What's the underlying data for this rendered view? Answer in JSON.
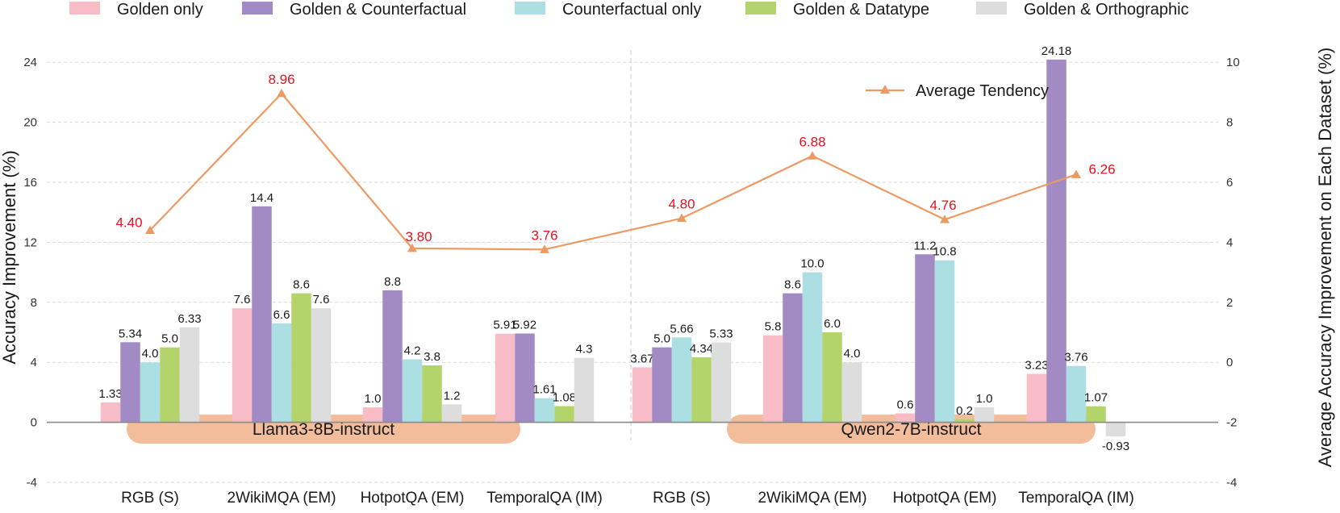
{
  "chart_data": {
    "type": "bar",
    "categories": [
      "RGB (S)",
      "2WikiMQA (EM)",
      "HotpotQA (EM)",
      "TemporalQA (IM)",
      "RGB (S)",
      "2WikiMQA (EM)",
      "HotpotQA (EM)",
      "TemporalQA (IM)"
    ],
    "groups": [
      {
        "label": "Llama3-8B-instruct",
        "category_indices": [
          0,
          1,
          2,
          3
        ]
      },
      {
        "label": "Qwen2-7B-instruct",
        "category_indices": [
          4,
          5,
          6,
          7
        ]
      }
    ],
    "series": [
      {
        "name": "Golden only",
        "color": "#f7bcc6",
        "values": [
          1.33,
          7.6,
          1.0,
          5.91,
          3.67,
          5.8,
          0.6,
          3.23
        ],
        "labels": [
          "1.33",
          "7.6",
          "1.0",
          "5.91",
          "3.67",
          "5.8",
          "0.6",
          "3.23"
        ]
      },
      {
        "name": "Golden & Counterfactual",
        "color": "#a28ac4",
        "values": [
          5.34,
          14.4,
          8.8,
          5.92,
          5.0,
          8.6,
          11.2,
          24.18
        ],
        "labels": [
          "5.34",
          "14.4",
          "8.8",
          "5.92",
          "5.0",
          "8.6",
          "11.2",
          "24.18"
        ]
      },
      {
        "name": "Counterfactual only",
        "color": "#abdfe3",
        "values": [
          4.0,
          6.6,
          4.2,
          1.61,
          5.66,
          10.0,
          10.8,
          3.76
        ],
        "labels": [
          "4.0",
          "6.6",
          "4.2",
          "1.61",
          "5.66",
          "10.0",
          "10.8",
          "3.76"
        ]
      },
      {
        "name": "Golden & Datatype",
        "color": "#b3d46a",
        "values": [
          5.0,
          8.6,
          3.8,
          1.08,
          4.34,
          6.0,
          0.2,
          1.07
        ],
        "labels": [
          "5.0",
          "8.6",
          "3.8",
          "1.08",
          "4.34",
          "6.0",
          "0.2",
          "1.07"
        ]
      },
      {
        "name": "Golden & Orthographic",
        "color": "#dddddd",
        "values": [
          6.33,
          7.6,
          1.2,
          4.3,
          5.33,
          4.0,
          1.0,
          -0.93
        ],
        "labels": [
          "6.33",
          "7.6",
          "1.2",
          "4.3",
          "5.33",
          "4.0",
          "1.0",
          "-0.93"
        ]
      }
    ],
    "line": {
      "name": "Average Tendency",
      "color": "#ec9a63",
      "label_color": "#e8101e",
      "axis": "right",
      "values": [
        4.4,
        8.96,
        3.8,
        3.76,
        4.8,
        6.88,
        4.76,
        6.26
      ],
      "labels": [
        "4.40",
        "8.96",
        "3.80",
        "3.76",
        "4.80",
        "6.88",
        "4.76",
        "6.26"
      ]
    },
    "ylabel": "Accuracy Improvement (%)",
    "ylabel_right": "Average Accuracy Improvement on Each Dataset (%)",
    "ylim": [
      -4,
      26
    ],
    "ylim_right": [
      -4,
      11
    ],
    "yticks": [
      -4,
      0,
      4,
      8,
      12,
      16,
      20,
      24
    ],
    "yticks_right": [
      -4,
      -2,
      0,
      2,
      4,
      6,
      8,
      10
    ],
    "grid": true,
    "legend_placement": "top"
  }
}
